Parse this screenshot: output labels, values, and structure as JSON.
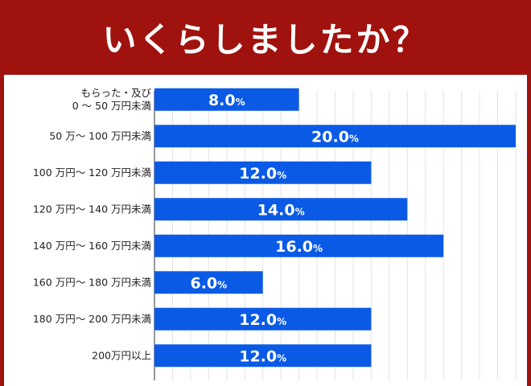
{
  "header": {
    "title": "いくらしましたか？",
    "background_color": "#a0120e"
  },
  "chart_data": {
    "type": "bar",
    "orientation": "horizontal",
    "title": "いくらしましたか？",
    "categories": [
      "もらった・及び\n0 ～ 50 万円未満",
      "50 万～ 100 万円未満",
      "100 万円～ 120 万円未満",
      "120 万円～ 140 万円未満",
      "140 万円～ 160 万円未満",
      "160 万円～ 180 万円未満",
      "180 万円～ 200 万円未満",
      "200万円以上"
    ],
    "values": [
      8.0,
      20.0,
      12.0,
      14.0,
      16.0,
      6.0,
      12.0,
      12.0
    ],
    "value_unit": "%",
    "xlim": [
      0,
      20
    ],
    "bar_color": "#0a5ae6",
    "grid": true,
    "legend": "none"
  }
}
